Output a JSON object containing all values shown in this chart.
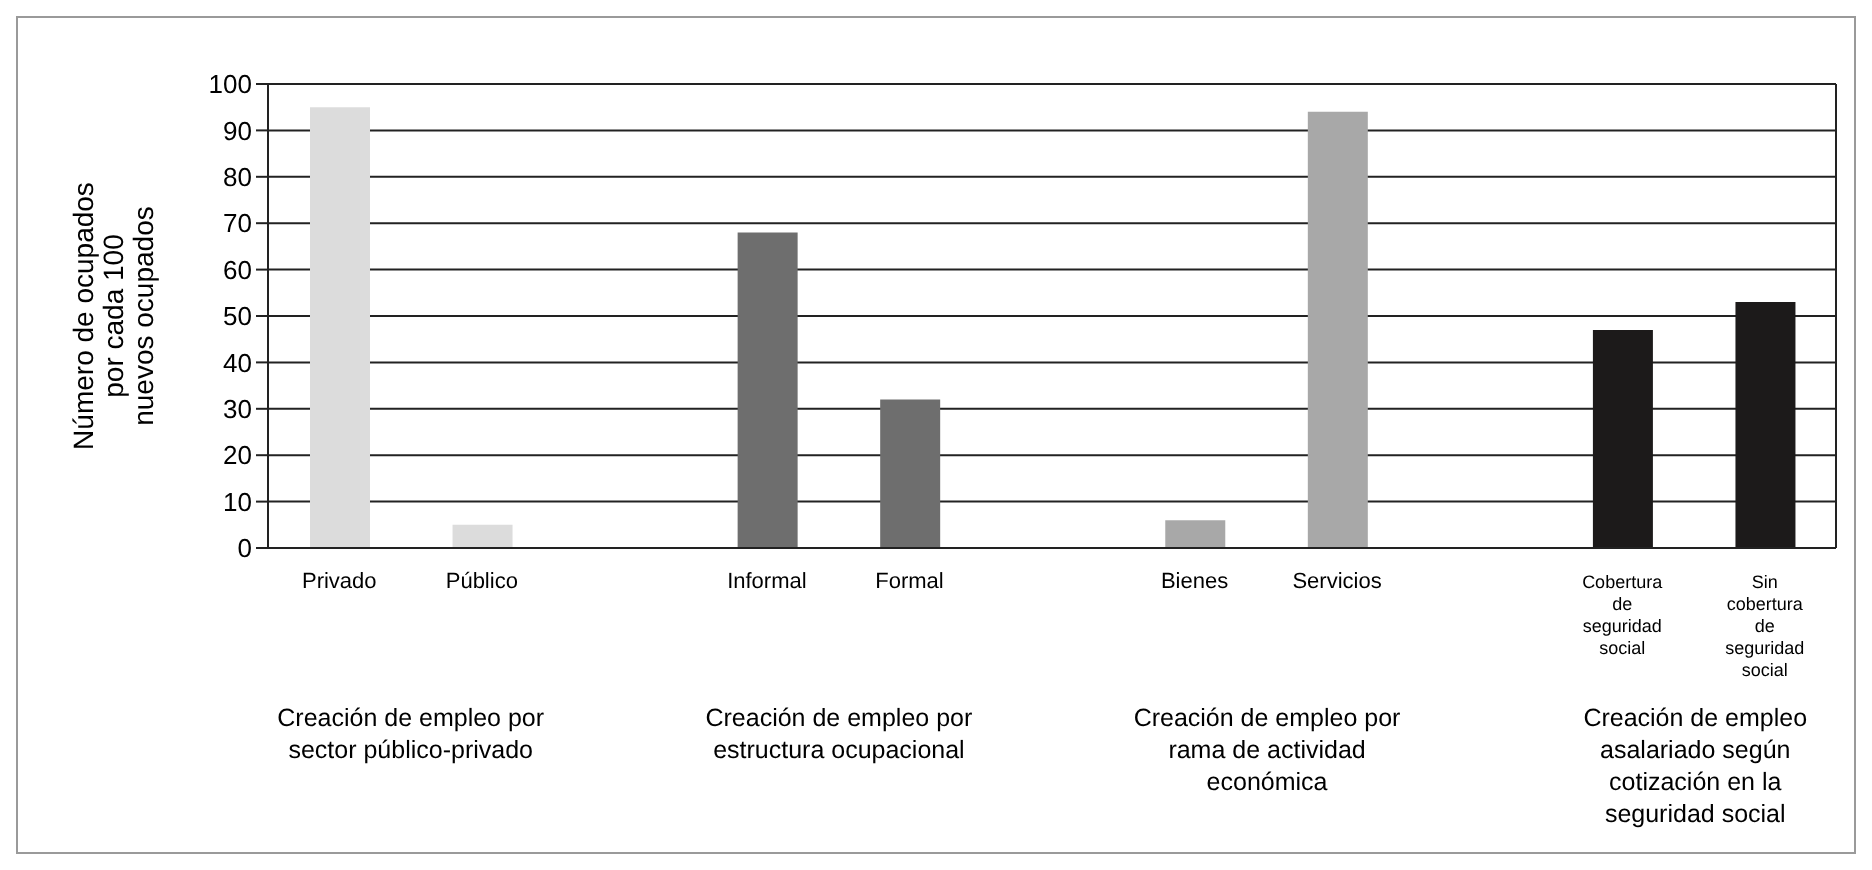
{
  "chart_data": {
    "type": "bar",
    "ylabel": "Número de ocupados por cada 100 nuevos ocupados",
    "categories": [
      "Privado",
      "Público",
      null,
      "Informal",
      "Formal",
      null,
      "Bienes",
      "Servicios",
      null,
      "Cobertura de seguridad social",
      "Sin cobertura de seguridad social"
    ],
    "series": [
      {
        "values": [
          95,
          5,
          null,
          68,
          32,
          null,
          6,
          94,
          null,
          47,
          53
        ],
        "colors": [
          "#dcdcdc",
          "#dcdcdc",
          null,
          "#6e6e6e",
          "#6e6e6e",
          null,
          "#a8a8a8",
          "#a8a8a8",
          null,
          "#1c1a1a",
          "#1c1a1a"
        ]
      }
    ],
    "ylim": [
      0,
      100
    ],
    "yticks": [
      0,
      10,
      20,
      30,
      40,
      50,
      60,
      70,
      80,
      90,
      100
    ],
    "grid": "y",
    "annotations": [
      "Creación de empleo por sector público-privado",
      "Creación de empleo por estructura ocupacional",
      "Creación de empleo por rama de actividad económica",
      "Creación de empleo asalariado según cotización en la seguridad social"
    ]
  }
}
